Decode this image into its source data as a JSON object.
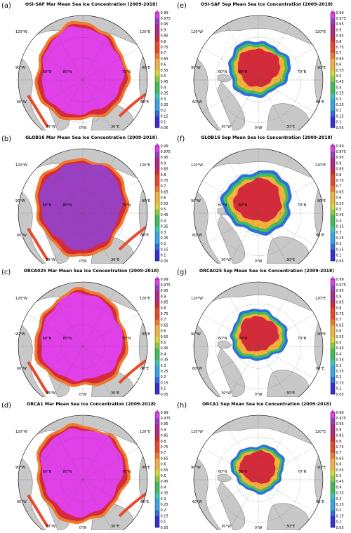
{
  "colors": {
    "land": "#c8c8c8",
    "ocean": "#ffffff",
    "coast": "#707070",
    "grid": "#555555",
    "scale": [
      "#3a2fd6",
      "#2f6fe0",
      "#35a6e6",
      "#3fc6b8",
      "#3fbf5a",
      "#8fcc3a",
      "#d8d83a",
      "#f4b23a",
      "#f07a2a",
      "#e84a2a",
      "#d42a3a",
      "#b02a8a",
      "#9a3fc0",
      "#e040e8"
    ]
  },
  "colorbar_ticks": [
    "0.99",
    "0.975",
    "0.95",
    "0.9",
    "0.85",
    "0.8",
    "0.75",
    "0.7",
    "0.65",
    "0.6",
    "0.55",
    "0.5",
    "0.45",
    "0.4",
    "0.35",
    "0.3",
    "0.25",
    "0.2",
    "0.15",
    "0.1",
    "0.05"
  ],
  "map_labels": {
    "lon_120w": "120°W",
    "lon_90w": "90°W",
    "lon_60w": "60°W",
    "lon_30w": "30°W",
    "lon_0w": "0°W",
    "lon_30e": "30°E",
    "lon_60e": "60°E",
    "lon_90e": "90°E",
    "lon_120e": "120°E",
    "lat_60n": "60°N",
    "lat_70n": "70°N",
    "lat_80n": "80°N"
  },
  "panels": [
    {
      "letter": "(a)",
      "title": "OSI-SAF Mar Mean Sea Ice Concentration (2009-2018)",
      "season": "mar",
      "variant": "osi"
    },
    {
      "letter": "(e)",
      "title": "OSI-SAF Sep Mean Sea Ice Concentration (2009-2018)",
      "season": "sep",
      "variant": "osi"
    },
    {
      "letter": "(b)",
      "title": "GLOB16 Mar Mean Sea Ice Concentration (2009-2018)",
      "season": "mar",
      "variant": "glob16"
    },
    {
      "letter": "(f)",
      "title": "GLOB16 Sep Mean Sea Ice Concentration (2009-2018)",
      "season": "sep",
      "variant": "glob16"
    },
    {
      "letter": "(c)",
      "title": "ORCA025 Mar Mean Sea Ice Concentration (2009-2018)",
      "season": "mar",
      "variant": "orca025"
    },
    {
      "letter": "(g)",
      "title": "ORCA025 Sep Mean Sea Ice Concentration (2009-2018)",
      "season": "sep",
      "variant": "orca025"
    },
    {
      "letter": "(d)",
      "title": "ORCA1 Mar Mean Sea Ice Concentration (2009-2018)",
      "season": "mar",
      "variant": "orca1"
    },
    {
      "letter": "(h)",
      "title": "ORCA1 Sep Mean Sea Ice Concentration (2009-2018)",
      "season": "sep",
      "variant": "orca1"
    }
  ]
}
